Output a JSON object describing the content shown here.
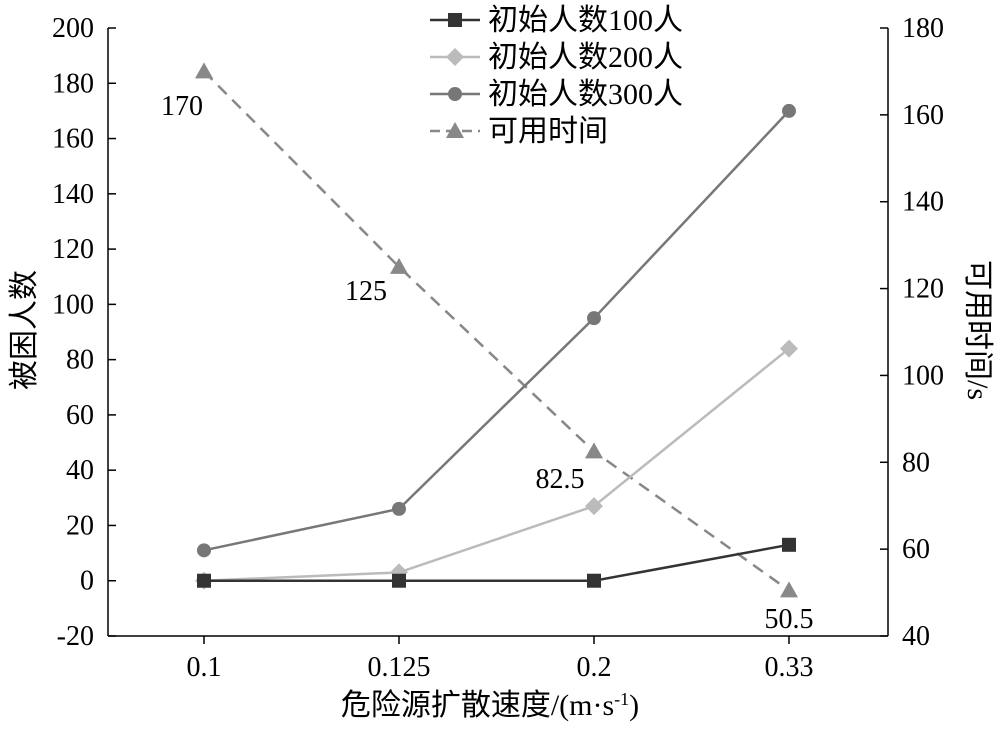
{
  "chart_data": {
    "type": "line",
    "categories": [
      "0.1",
      "0.125",
      "0.2",
      "0.33"
    ],
    "xlabel": "危险源扩散速度/(m·s",
    "xlabel_sup": "-1",
    "xlabel_end": ")",
    "ylabel_left": "被困人数",
    "ylabel_right": "可用时间/s",
    "ylim_left": [
      -20,
      200
    ],
    "yticks_left": [
      -20,
      0,
      20,
      40,
      60,
      80,
      100,
      120,
      140,
      160,
      180,
      200
    ],
    "ylim_right": [
      40,
      180
    ],
    "yticks_right": [
      40,
      60,
      80,
      100,
      120,
      140,
      160,
      180
    ],
    "grid": false,
    "legend_position": "top-center",
    "series": [
      {
        "name": "初始人数100人",
        "axis": "left",
        "marker": "square",
        "dash": false,
        "color": "#333333",
        "values": [
          0,
          0,
          0,
          13
        ]
      },
      {
        "name": "初始人数200人",
        "axis": "left",
        "marker": "diamond",
        "dash": false,
        "color": "#bbbbbb",
        "values": [
          0,
          3,
          27,
          84
        ]
      },
      {
        "name": "初始人数300人",
        "axis": "left",
        "marker": "circle",
        "dash": false,
        "color": "#777777",
        "values": [
          11,
          26,
          95,
          170
        ]
      },
      {
        "name": "可用时间",
        "axis": "right",
        "marker": "triangle",
        "dash": true,
        "color": "#888888",
        "values": [
          170,
          125,
          82.5,
          50.5
        ]
      }
    ],
    "data_labels": [
      "170",
      "125",
      "82.5",
      "50.5"
    ]
  }
}
